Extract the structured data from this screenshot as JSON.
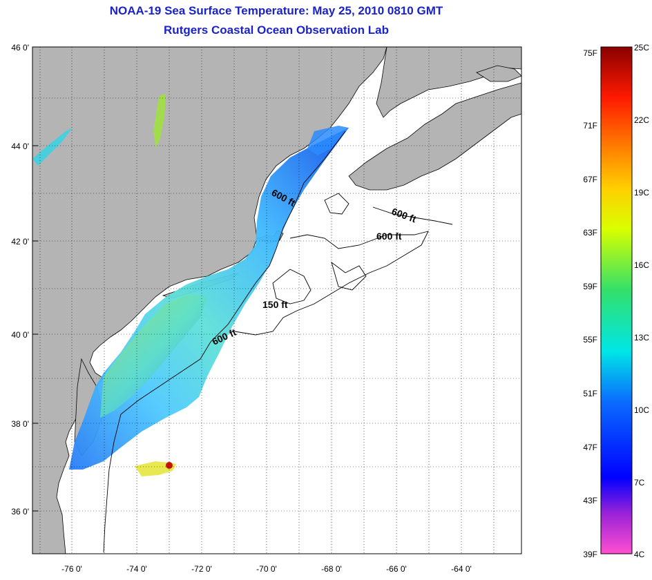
{
  "title_line1": "NOAA-19 Sea Surface Temperature:  May 25, 2010 0810 GMT",
  "title_line2": "Rutgers Coastal Ocean Observation Lab",
  "map": {
    "lat_ticks": [
      "46 0'",
      "44 0'",
      "42 0'",
      "40 0'",
      "38 0'",
      "36 0'"
    ],
    "lon_ticks": [
      "-76 0'",
      "-74 0'",
      "-72 0'",
      "-70 0'",
      "-68 0'",
      "-66 0'",
      "-64 0'"
    ],
    "contour_labels": [
      "600 ft",
      "600 ft",
      "600 ft",
      "150 ft",
      "600 ft"
    ],
    "grid": "dotted",
    "colors": {
      "land": "#b4b4b4",
      "ocean_no_data": "#ffffff",
      "contour": "#000000"
    }
  },
  "colorbar": {
    "fahrenheit_labels": [
      "75F",
      "71F",
      "67F",
      "63F",
      "59F",
      "55F",
      "51F",
      "47F",
      "43F",
      "39F"
    ],
    "celsius_labels": [
      "25C",
      "22C",
      "19C",
      "16C",
      "13C",
      "10C",
      "7C",
      "4C"
    ],
    "range_c": [
      4,
      25
    ],
    "stops": [
      "#ff4fd0",
      "#9a22d8",
      "#0000ff",
      "#0a6cff",
      "#00e6e6",
      "#33e06a",
      "#d8ff00",
      "#ffd000",
      "#ff8000",
      "#ff1a00",
      "#8b0000"
    ]
  }
}
